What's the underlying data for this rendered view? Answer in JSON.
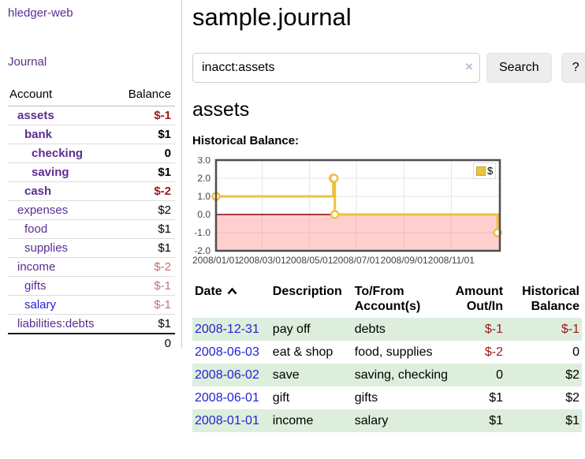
{
  "app": {
    "title": "hledger-web"
  },
  "sidebar": {
    "journal_link": "Journal",
    "accounts_table": {
      "headers": {
        "account": "Account",
        "balance": "Balance"
      },
      "rows": [
        {
          "name": "assets",
          "indent": 0,
          "bold": true,
          "name_color": "purple",
          "balance": "$-1",
          "balance_style": "neg-dark"
        },
        {
          "name": "bank",
          "indent": 1,
          "bold": true,
          "name_color": "purple",
          "balance": "$1",
          "balance_style": "normal"
        },
        {
          "name": "checking",
          "indent": 2,
          "bold": true,
          "name_color": "purple",
          "balance": "0",
          "balance_style": "normal"
        },
        {
          "name": "saving",
          "indent": 2,
          "bold": true,
          "name_color": "purple",
          "balance": "$1",
          "balance_style": "normal"
        },
        {
          "name": "cash",
          "indent": 1,
          "bold": true,
          "name_color": "purple",
          "balance": "$-2",
          "balance_style": "neg-dark"
        },
        {
          "name": "expenses",
          "indent": 0,
          "bold": false,
          "name_color": "purple",
          "balance": "$2",
          "balance_style": "normal"
        },
        {
          "name": "food",
          "indent": 1,
          "bold": false,
          "name_color": "purple",
          "balance": "$1",
          "balance_style": "normal"
        },
        {
          "name": "supplies",
          "indent": 1,
          "bold": false,
          "name_color": "purple",
          "balance": "$1",
          "balance_style": "normal"
        },
        {
          "name": "income",
          "indent": 0,
          "bold": false,
          "name_color": "purple",
          "balance": "$-2",
          "balance_style": "neg-light"
        },
        {
          "name": "gifts",
          "indent": 1,
          "bold": false,
          "name_color": "purple",
          "balance": "$-1",
          "balance_style": "neg-light"
        },
        {
          "name": "salary",
          "indent": 1,
          "bold": false,
          "name_color": "blue",
          "balance": "$-1",
          "balance_style": "neg-light"
        },
        {
          "name": "liabilities:debts",
          "indent": 0,
          "bold": false,
          "name_color": "purple",
          "balance": "$1",
          "balance_style": "normal"
        }
      ],
      "total": "0"
    }
  },
  "main": {
    "title": "sample.journal",
    "search": {
      "value": "inacct:assets",
      "clear_icon": "×",
      "button_label": "Search",
      "help_label": "?"
    },
    "account_heading": "assets",
    "chart_label": "Historical Balance:"
  },
  "chart_data": {
    "type": "line",
    "steps": true,
    "title": "Historical Balance:",
    "series": [
      {
        "name": "$",
        "color": "#edc240",
        "points": [
          {
            "date": "2008-01-01",
            "value": 1
          },
          {
            "date": "2008-06-01",
            "value": 2
          },
          {
            "date": "2008-06-02",
            "value": 2
          },
          {
            "date": "2008-06-03",
            "value": 0
          },
          {
            "date": "2008-12-31",
            "value": -1
          }
        ]
      }
    ],
    "x_ticks": [
      "2008/01/01",
      "2008/03/01",
      "2008/05/01",
      "2008/07/01",
      "2008/09/01",
      "2008/11/01"
    ],
    "y_ticks": [
      3.0,
      2.0,
      1.0,
      0.0,
      -1.0,
      -2.0
    ],
    "ylim": [
      -2,
      3
    ],
    "xlim": [
      "2008-01-01",
      "2009-01-03"
    ],
    "legend_position": "top-right",
    "grid": true,
    "negative_region_shaded": true
  },
  "register": {
    "headers": {
      "date": "Date",
      "description": "Description",
      "accounts_line1": "To/From",
      "accounts_line2": "Account(s)",
      "amount_line1": "Amount",
      "amount_line2": "Out/In",
      "balance_line1": "Historical",
      "balance_line2": "Balance"
    },
    "rows": [
      {
        "date": "2008-12-31",
        "description": "pay off",
        "accounts": "debts",
        "amount": "$-1",
        "amount_neg": true,
        "balance": "$-1",
        "balance_neg": true
      },
      {
        "date": "2008-06-03",
        "description": "eat & shop",
        "accounts": "food, supplies",
        "amount": "$-2",
        "amount_neg": true,
        "balance": "0",
        "balance_neg": false
      },
      {
        "date": "2008-06-02",
        "description": "save",
        "accounts": "saving, checking",
        "amount": "0",
        "amount_neg": false,
        "balance": "$2",
        "balance_neg": false
      },
      {
        "date": "2008-06-01",
        "description": "gift",
        "accounts": "gifts",
        "amount": "$1",
        "amount_neg": false,
        "balance": "$2",
        "balance_neg": false
      },
      {
        "date": "2008-01-01",
        "description": "income",
        "accounts": "salary",
        "amount": "$1",
        "amount_neg": false,
        "balance": "$1",
        "balance_neg": false
      }
    ]
  },
  "colors": {
    "link_purple": "#5b2d91",
    "link_blue": "#2323d6",
    "negative_dark": "#9c1a1a",
    "negative_light": "#c47272",
    "row_stripe_green": "#ddeedd",
    "chart_series": "#edc240",
    "chart_zero_line": "#8b0000",
    "chart_negative_fill": "rgba(255,110,110,0.33)",
    "chart_border": "#4e4e4e",
    "chart_grid": "#e6e6e6"
  }
}
